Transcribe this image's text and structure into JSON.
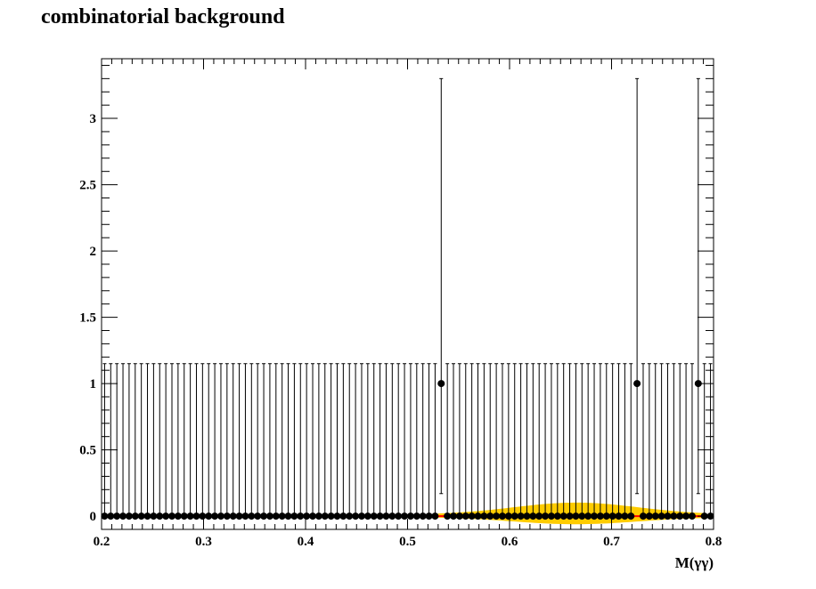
{
  "chart_data": {
    "type": "scatter",
    "title": "combinatorial background",
    "xlabel": "M(γγ)",
    "ylabel": "",
    "xlim": [
      0.2,
      0.8
    ],
    "ylim": [
      -0.1,
      3.45
    ],
    "x_ticks": [
      "0.2",
      "0.3",
      "0.4",
      "0.5",
      "0.6",
      "0.7",
      "0.8"
    ],
    "y_ticks": [
      "0",
      "0.5",
      "1",
      "1.5",
      "2",
      "2.5",
      "3"
    ],
    "grid": false,
    "colors": {
      "points": "#000000",
      "band": "#ffcc00",
      "curve": "#ff0000"
    },
    "series": [
      {
        "bin_start": 0.2,
        "bin_width": 0.006,
        "n_bins": 100,
        "default_value": 0,
        "default_error": [
          0,
          1.15
        ],
        "nonzero": [
          {
            "x": 0.533,
            "y": 1,
            "err_low": 0.83,
            "err_high": 2.3
          },
          {
            "x": 0.725,
            "y": 1,
            "err_low": 0.83,
            "err_high": 2.3
          },
          {
            "x": 0.785,
            "y": 1,
            "err_low": 0.83,
            "err_high": 2.3
          }
        ]
      }
    ],
    "fit_band": {
      "x_range": [
        0.53,
        0.79
      ],
      "peak_x": 0.665,
      "peak_half_width": 0.095
    }
  }
}
